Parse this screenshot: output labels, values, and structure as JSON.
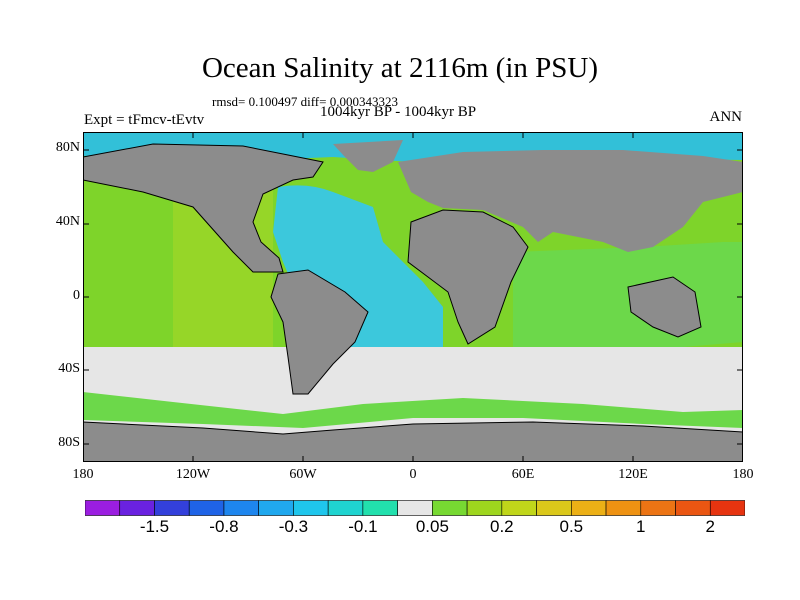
{
  "header": {
    "title": "Ocean Salinity at 2116m (in PSU)",
    "stats": "rmsd= 0.100497 diff= 0.000343323",
    "period": "1004kyr BP - 1004kyr BP",
    "expt": "Expt = tFmcv-tEvtv",
    "season": "ANN"
  },
  "axes": {
    "lat_labels": [
      "80N",
      "40N",
      "0",
      "40S",
      "80S"
    ],
    "lon_labels": [
      "180",
      "120W",
      "60W",
      "0",
      "60E",
      "120E",
      "180"
    ]
  },
  "colors": {
    "land": "#8c8c8c",
    "neutral": "#e6e6e6",
    "atlantic": "#3cc8dc",
    "arctic": "#32c0d8",
    "pacific_deep": "#7ed42a",
    "pacific_east": "#96d628",
    "southern_band": "#6cd84a",
    "coast": "#000000",
    "frame": "#000000"
  },
  "colorbar": {
    "colors": [
      "#9b1ee0",
      "#6a22e0",
      "#3340db",
      "#1f63e6",
      "#1e86ee",
      "#20a8ee",
      "#1fc6ec",
      "#1fd4d0",
      "#22e0ad",
      "#e6e6e6",
      "#77d932",
      "#9ed61e",
      "#c0d61a",
      "#dbc81a",
      "#ecb016",
      "#ee9212",
      "#ec7414",
      "#ea5612",
      "#e63410"
    ],
    "labels": [
      "-1.5",
      "-0.8",
      "-0.3",
      "-0.1",
      "0.05",
      "0.2",
      "0.5",
      "1",
      "2"
    ]
  }
}
